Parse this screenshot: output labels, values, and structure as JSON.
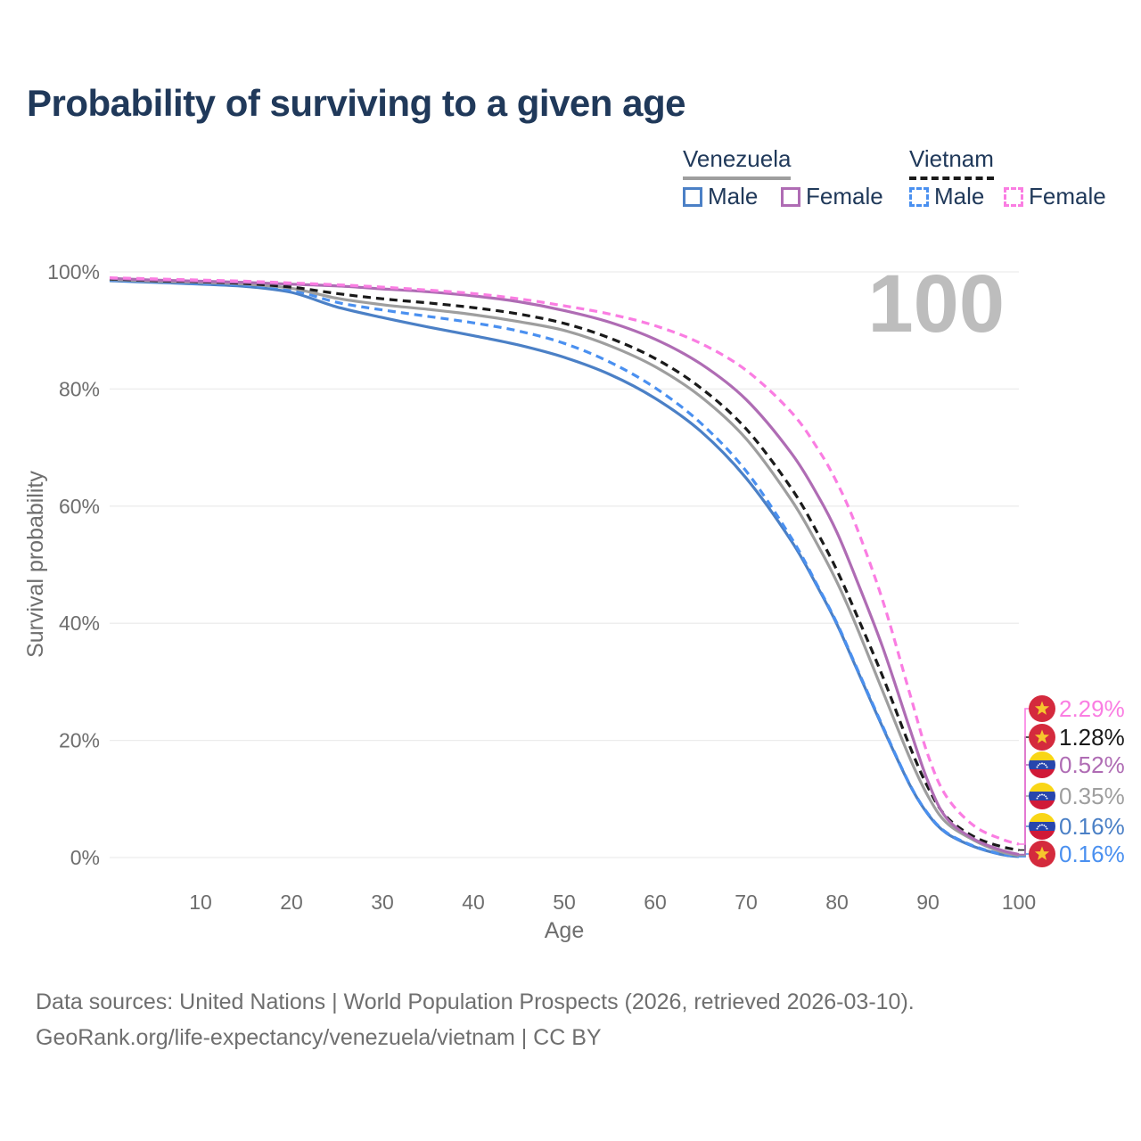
{
  "header": {
    "title": "Probability of surviving to a given age"
  },
  "legend": {
    "groups": [
      {
        "id": "venezuela",
        "label": "Venezuela",
        "line_style": "solid",
        "underline_color": "#9e9e9e",
        "items": [
          {
            "label": "Male",
            "color": "#4b80c6",
            "dashed": false
          },
          {
            "label": "Female",
            "color": "#af6cb4",
            "dashed": false
          }
        ]
      },
      {
        "id": "vietnam",
        "label": "Vietnam",
        "line_style": "dashed",
        "underline_color": "#1a1a1a",
        "items": [
          {
            "label": "Male",
            "color": "#4a90f0",
            "dashed": true
          },
          {
            "label": "Female",
            "color": "#fa7de2",
            "dashed": true
          }
        ]
      }
    ]
  },
  "chart_data": {
    "type": "line",
    "title": "Probability of surviving to a given age",
    "xlabel": "Age",
    "ylabel": "Survival probability",
    "watermark": "100",
    "grid": "horizontal",
    "xlim": [
      0,
      100
    ],
    "ylim": [
      0,
      100
    ],
    "x_ticks": [
      10,
      20,
      30,
      40,
      50,
      60,
      70,
      80,
      90,
      100
    ],
    "y_ticks": [
      "0%",
      "20%",
      "40%",
      "60%",
      "80%",
      "100%"
    ],
    "ages": [
      0,
      5,
      10,
      15,
      20,
      25,
      30,
      35,
      40,
      45,
      50,
      55,
      60,
      65,
      70,
      75,
      78,
      80,
      82,
      85,
      88,
      90,
      92,
      95,
      98,
      100
    ],
    "series": [
      {
        "name": "Venezuela Male",
        "country": "Venezuela",
        "sex": "Male",
        "color": "#4b80c6",
        "dashed": false,
        "flag": "venezuela",
        "end_label": "0.16%",
        "label_row": 4,
        "values": [
          98.5,
          98.2,
          97.9,
          97.5,
          96.5,
          94.0,
          92.2,
          90.6,
          89.1,
          87.5,
          85.4,
          82.5,
          78.4,
          72.8,
          64.8,
          54.0,
          45.8,
          39.8,
          32.8,
          22.3,
          12.4,
          7.4,
          4.2,
          1.9,
          0.55,
          0.16
        ]
      },
      {
        "name": "Vietnam Male",
        "country": "Vietnam",
        "sex": "Male",
        "color": "#4a90f0",
        "dashed": true,
        "flag": "vietnam",
        "end_label": "0.16%",
        "label_row": 5,
        "values": [
          98.6,
          98.3,
          98.0,
          97.7,
          96.9,
          94.8,
          93.5,
          92.4,
          91.3,
          89.9,
          87.8,
          84.6,
          80.2,
          74.2,
          66.0,
          54.5,
          46.0,
          40.0,
          33.0,
          22.5,
          12.5,
          7.5,
          4.3,
          2.0,
          0.6,
          0.16
        ]
      },
      {
        "name": "Venezuela Both sexes",
        "country": "Venezuela",
        "sex": "Both",
        "color": "#9e9e9e",
        "dashed": false,
        "flag": "venezuela",
        "end_label": "0.35%",
        "label_row": 3,
        "values": [
          98.7,
          98.4,
          98.2,
          97.9,
          97.2,
          95.5,
          94.4,
          93.6,
          92.7,
          91.5,
          90.0,
          87.4,
          83.8,
          78.7,
          71.5,
          61.0,
          53.0,
          47.0,
          40.0,
          28.5,
          17.0,
          10.5,
          6.0,
          3.0,
          1.0,
          0.35
        ]
      },
      {
        "name": "Vietnam Both sexes",
        "country": "Vietnam",
        "sex": "Both",
        "color": "#1a1a1a",
        "dashed": true,
        "flag": "vietnam",
        "end_label": "1.28%",
        "label_row": 1,
        "values": [
          98.8,
          98.5,
          98.3,
          98.0,
          97.4,
          96.3,
          95.4,
          94.7,
          93.9,
          92.8,
          91.2,
          88.7,
          85.2,
          80.2,
          73.2,
          63.0,
          55.0,
          49.0,
          42.0,
          31.0,
          19.0,
          12.0,
          7.0,
          3.6,
          1.9,
          1.28
        ]
      },
      {
        "name": "Venezuela Female",
        "country": "Venezuela",
        "sex": "Female",
        "color": "#af6cb4",
        "dashed": false,
        "flag": "venezuela",
        "end_label": "0.52%",
        "label_row": 2,
        "values": [
          98.9,
          98.6,
          98.4,
          98.2,
          97.9,
          97.6,
          97.1,
          96.6,
          95.9,
          94.9,
          93.4,
          91.4,
          88.5,
          84.3,
          78.2,
          69.0,
          61.5,
          55.5,
          48.0,
          36.0,
          22.0,
          13.0,
          6.8,
          3.2,
          1.3,
          0.52
        ]
      },
      {
        "name": "Vietnam Female",
        "country": "Vietnam",
        "sex": "Female",
        "color": "#fa7de2",
        "dashed": true,
        "flag": "vietnam",
        "end_label": "2.29%",
        "label_row": 0,
        "values": [
          99.0,
          98.8,
          98.6,
          98.4,
          98.1,
          97.8,
          97.4,
          96.9,
          96.3,
          95.4,
          94.2,
          92.8,
          90.8,
          87.8,
          83.2,
          76.0,
          69.5,
          64.0,
          57.0,
          44.0,
          28.0,
          17.5,
          10.5,
          5.5,
          3.2,
          2.29
        ]
      }
    ]
  },
  "footer": {
    "line1": "Data sources: United Nations | World Population Prospects (2026, retrieved 2026-03-10).",
    "line2": "GeoRank.org/life-expectancy/venezuela/vietnam | CC BY"
  }
}
